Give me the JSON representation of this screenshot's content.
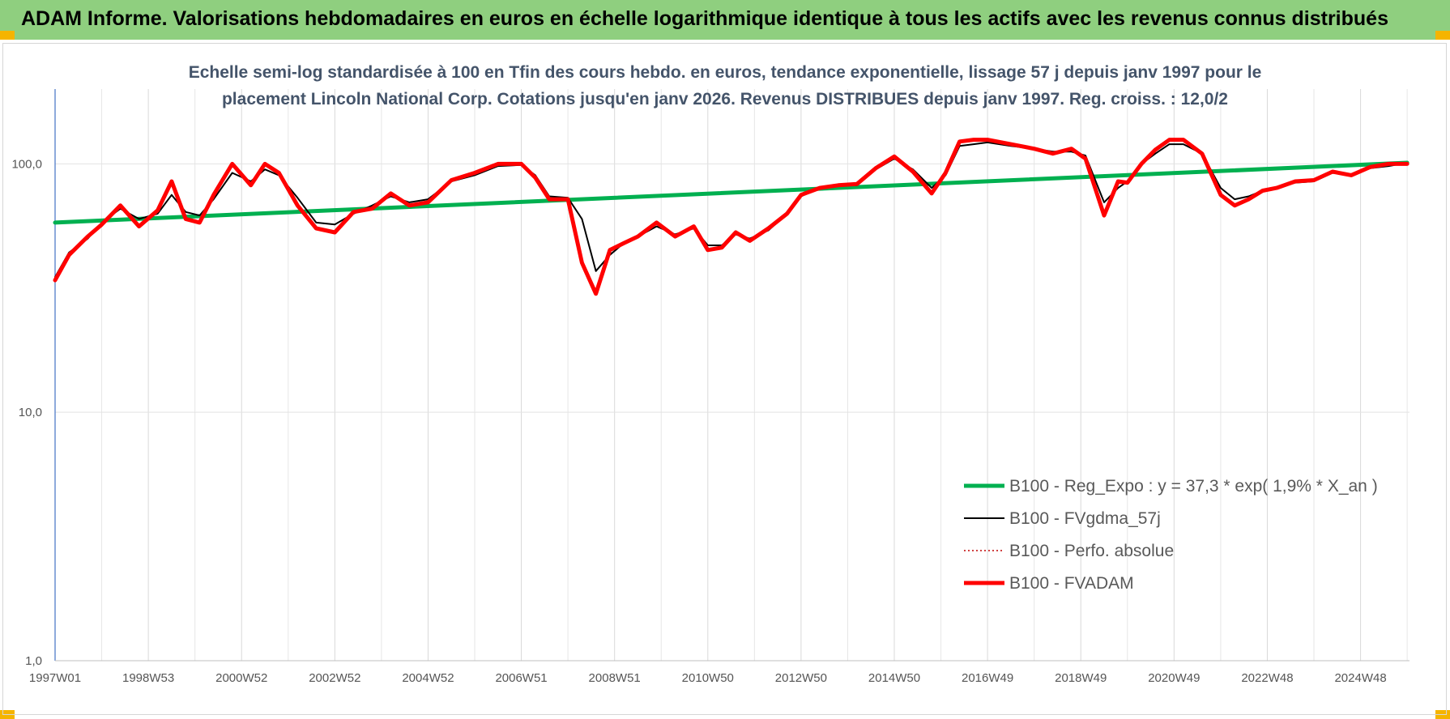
{
  "header": {
    "title": "ADAM Informe. Valorisations hebdomadaires en euros en échelle logarithmique identique à tous les actifs avec les revenus connus distribués"
  },
  "colors": {
    "header_bg": "#8fcf7f",
    "accent_corner": "#f5b400"
  },
  "chart_data": {
    "type": "line",
    "title_lines": [
      "Echelle semi-log standardisée à 100 en Tfin des cours hebdo. en euros, tendance exponentielle, lissage 57 j depuis janv 1997 pour le",
      "placement Lincoln National Corp. Cotations jusqu'en janv 2026. Revenus DISTRIBUES depuis janv 1997. Reg. croiss. : 12,0/2"
    ],
    "y_scale": "log",
    "ylim": [
      1,
      200
    ],
    "y_ticks": [
      {
        "value": 1,
        "label": "1,0"
      },
      {
        "value": 10,
        "label": "10,0"
      },
      {
        "value": 100,
        "label": "100,0"
      }
    ],
    "xlim": [
      1997.0,
      2026.05
    ],
    "x_ticks": [
      {
        "value": 1997.0,
        "label": "1997W01"
      },
      {
        "value": 1999.0,
        "label": "1998W53"
      },
      {
        "value": 2001.0,
        "label": "2000W52"
      },
      {
        "value": 2003.0,
        "label": "2002W52"
      },
      {
        "value": 2005.0,
        "label": "2004W52"
      },
      {
        "value": 2007.0,
        "label": "2006W51"
      },
      {
        "value": 2009.0,
        "label": "2008W51"
      },
      {
        "value": 2011.0,
        "label": "2010W50"
      },
      {
        "value": 2013.0,
        "label": "2012W50"
      },
      {
        "value": 2015.0,
        "label": "2014W50"
      },
      {
        "value": 2017.0,
        "label": "2016W49"
      },
      {
        "value": 2019.0,
        "label": "2018W49"
      },
      {
        "value": 2021.0,
        "label": "2020W49"
      },
      {
        "value": 2023.0,
        "label": "2022W48"
      },
      {
        "value": 2025.0,
        "label": "2024W48"
      }
    ],
    "grid": "vertical",
    "legend_position": "bottom-right",
    "series": [
      {
        "name": "B100 - Reg_Expo : y = 37,3 * exp( 1,9% *  X_an )",
        "color": "#00b050",
        "style": "solid-thick",
        "x": [
          1997.0,
          2026.0
        ],
        "y": [
          58,
          101
        ]
      },
      {
        "name": "B100 - FVgdma_57j",
        "color": "#000000",
        "style": "solid-thin",
        "x": [
          1997.0,
          1997.3,
          1997.7,
          1998.0,
          1998.4,
          1998.8,
          1999.2,
          1999.5,
          1999.8,
          2000.1,
          2000.4,
          2000.8,
          2001.2,
          2001.5,
          2001.8,
          2002.2,
          2002.6,
          2003.0,
          2003.4,
          2003.8,
          2004.2,
          2004.6,
          2005.0,
          2005.5,
          2006.0,
          2006.5,
          2007.0,
          2007.3,
          2007.6,
          2008.0,
          2008.3,
          2008.6,
          2008.9,
          2009.2,
          2009.5,
          2009.9,
          2010.3,
          2010.7,
          2011.0,
          2011.3,
          2011.6,
          2011.9,
          2012.3,
          2012.7,
          2013.0,
          2013.4,
          2013.8,
          2014.2,
          2014.6,
          2015.0,
          2015.4,
          2015.8,
          2016.1,
          2016.4,
          2016.7,
          2017.0,
          2017.5,
          2018.0,
          2018.4,
          2018.8,
          2019.1,
          2019.5,
          2019.8,
          2020.0,
          2020.3,
          2020.6,
          2020.9,
          2021.2,
          2021.6,
          2022.0,
          2022.3,
          2022.6,
          2022.9,
          2023.2,
          2023.6,
          2024.0,
          2024.4,
          2024.8,
          2025.2,
          2025.6,
          2026.0
        ],
        "y": [
          35,
          44,
          50,
          58,
          66,
          60,
          63,
          75,
          64,
          62,
          72,
          92,
          85,
          95,
          90,
          73,
          58,
          57,
          63,
          68,
          74,
          70,
          72,
          85,
          90,
          98,
          99,
          90,
          74,
          73,
          60,
          37,
          43,
          48,
          51,
          56,
          52,
          55,
          47,
          47,
          52,
          50,
          54,
          63,
          74,
          80,
          82,
          82,
          95,
          105,
          95,
          80,
          90,
          118,
          120,
          122,
          118,
          115,
          112,
          112,
          108,
          70,
          80,
          85,
          100,
          110,
          120,
          120,
          110,
          80,
          72,
          74,
          78,
          80,
          84,
          85,
          92,
          90,
          96,
          98,
          101
        ]
      },
      {
        "name": "B100 - Perfo. absolue",
        "color": "#c00000",
        "style": "dotted",
        "x": [
          1997.0,
          1997.3,
          1997.7,
          1998.0,
          1998.4,
          1998.8,
          1999.2,
          1999.5,
          1999.8,
          2000.1,
          2000.4,
          2000.8,
          2001.2,
          2001.5,
          2001.8,
          2002.2,
          2002.6,
          2003.0,
          2003.4,
          2003.8,
          2004.2,
          2004.6,
          2005.0,
          2005.5,
          2006.0,
          2006.5,
          2007.0,
          2007.3,
          2007.6,
          2008.0,
          2008.3,
          2008.6,
          2008.9,
          2009.2,
          2009.5,
          2009.9,
          2010.3,
          2010.7,
          2011.0,
          2011.3,
          2011.6,
          2011.9,
          2012.3,
          2012.7,
          2013.0,
          2013.4,
          2013.8,
          2014.2,
          2014.6,
          2015.0,
          2015.4,
          2015.8,
          2016.1,
          2016.4,
          2016.7,
          2017.0,
          2017.5,
          2018.0,
          2018.4,
          2018.8,
          2019.1,
          2019.5,
          2019.8,
          2020.0,
          2020.3,
          2020.6,
          2020.9,
          2021.2,
          2021.6,
          2022.0,
          2022.3,
          2022.6,
          2022.9,
          2023.2,
          2023.6,
          2024.0,
          2024.4,
          2024.8,
          2025.2,
          2025.6,
          2026.0
        ],
        "y": [
          34,
          43,
          51,
          57,
          68,
          56,
          65,
          85,
          60,
          58,
          75,
          100,
          82,
          100,
          92,
          68,
          55,
          53,
          64,
          66,
          76,
          68,
          70,
          86,
          92,
          100,
          100,
          88,
          72,
          72,
          40,
          30,
          45,
          48,
          51,
          58,
          51,
          56,
          45,
          46,
          53,
          49,
          55,
          63,
          75,
          80,
          82,
          83,
          96,
          107,
          93,
          76,
          92,
          123,
          125,
          125,
          120,
          115,
          110,
          115,
          105,
          62,
          85,
          84,
          100,
          114,
          125,
          125,
          110,
          75,
          68,
          72,
          78,
          80,
          85,
          86,
          93,
          90,
          97,
          100,
          100
        ]
      },
      {
        "name": "B100 - FVADAM",
        "color": "#ff0000",
        "style": "solid-thick",
        "x": [
          1997.0,
          1997.3,
          1997.7,
          1998.0,
          1998.4,
          1998.8,
          1999.2,
          1999.5,
          1999.8,
          2000.1,
          2000.4,
          2000.8,
          2001.2,
          2001.5,
          2001.8,
          2002.2,
          2002.6,
          2003.0,
          2003.4,
          2003.8,
          2004.2,
          2004.6,
          2005.0,
          2005.5,
          2006.0,
          2006.5,
          2007.0,
          2007.3,
          2007.6,
          2008.0,
          2008.3,
          2008.6,
          2008.9,
          2009.2,
          2009.5,
          2009.9,
          2010.3,
          2010.7,
          2011.0,
          2011.3,
          2011.6,
          2011.9,
          2012.3,
          2012.7,
          2013.0,
          2013.4,
          2013.8,
          2014.2,
          2014.6,
          2015.0,
          2015.4,
          2015.8,
          2016.1,
          2016.4,
          2016.7,
          2017.0,
          2017.5,
          2018.0,
          2018.4,
          2018.8,
          2019.1,
          2019.5,
          2019.8,
          2020.0,
          2020.3,
          2020.6,
          2020.9,
          2021.2,
          2021.6,
          2022.0,
          2022.3,
          2022.6,
          2022.9,
          2023.2,
          2023.6,
          2024.0,
          2024.4,
          2024.8,
          2025.2,
          2025.6,
          2026.0
        ],
        "y": [
          34,
          43,
          51,
          57,
          68,
          56,
          65,
          85,
          60,
          58,
          75,
          100,
          82,
          100,
          92,
          68,
          55,
          53,
          64,
          66,
          76,
          68,
          70,
          86,
          92,
          100,
          100,
          88,
          72,
          72,
          40,
          30,
          45,
          48,
          51,
          58,
          51,
          56,
          45,
          46,
          53,
          49,
          55,
          63,
          75,
          80,
          82,
          83,
          96,
          107,
          93,
          76,
          92,
          123,
          125,
          125,
          120,
          115,
          110,
          115,
          105,
          62,
          85,
          84,
          100,
          114,
          125,
          125,
          110,
          75,
          68,
          72,
          78,
          80,
          85,
          86,
          93,
          90,
          97,
          100,
          100
        ]
      }
    ]
  }
}
